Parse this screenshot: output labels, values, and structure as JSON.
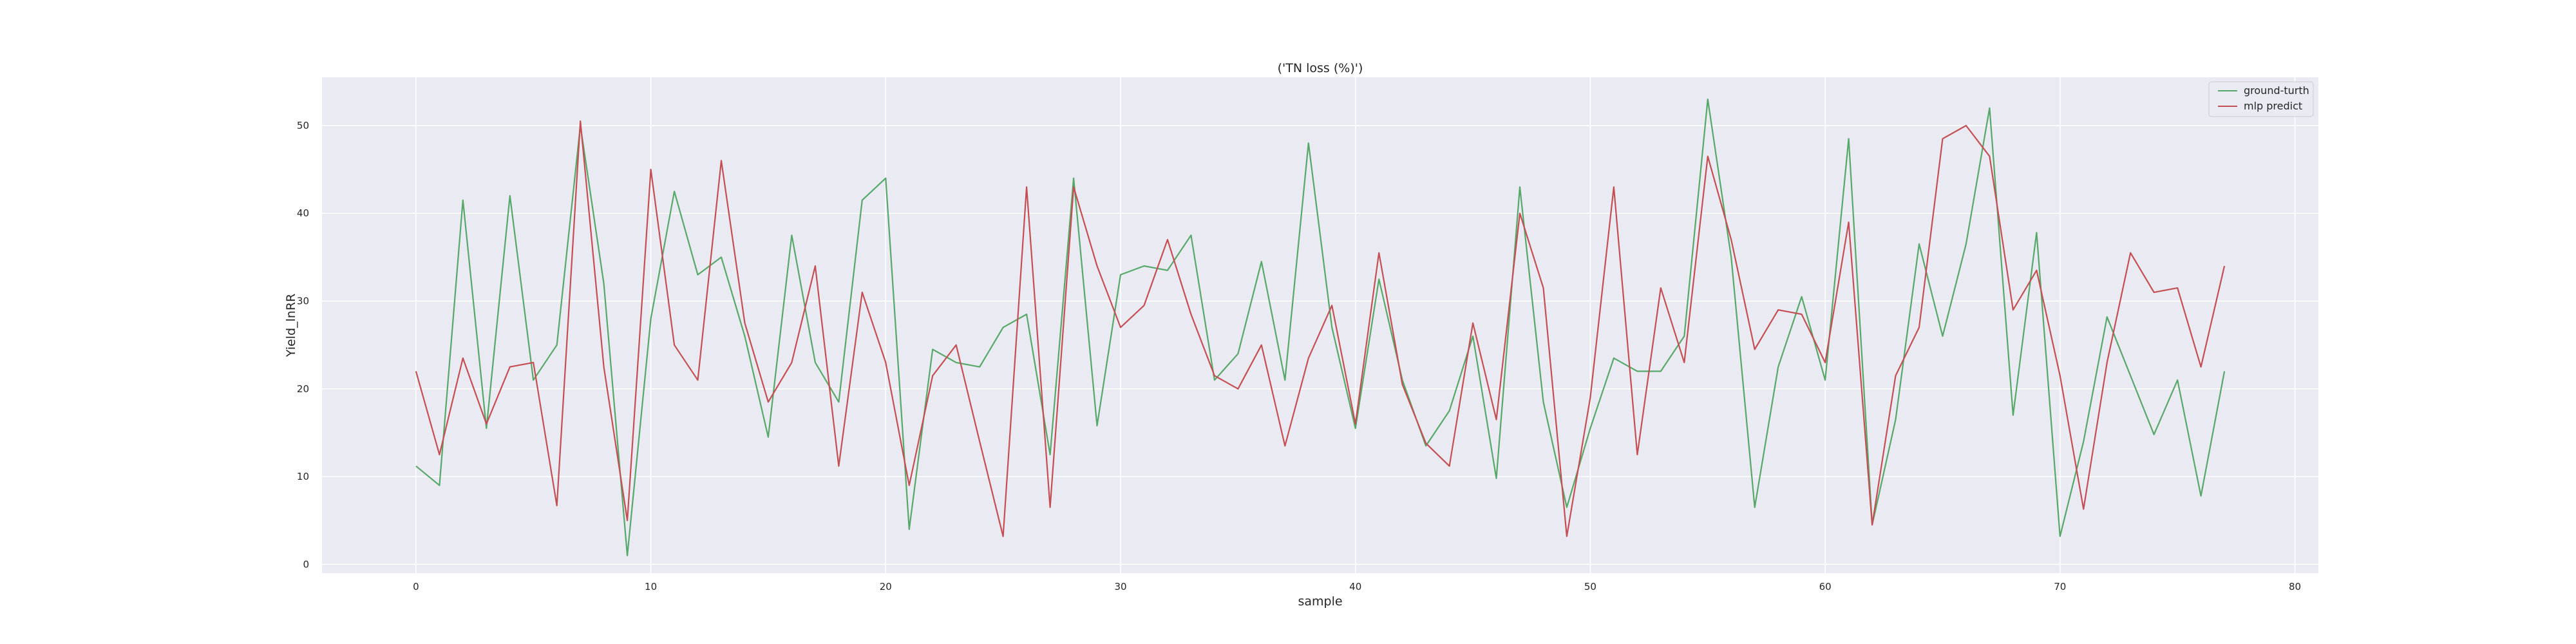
{
  "chart_data": {
    "type": "line",
    "title": "('TN loss (%)')",
    "xlabel": "sample",
    "ylabel": "Yield_lnRR",
    "xlim": [
      -4,
      81
    ],
    "ylim": [
      -1,
      55.5
    ],
    "xticks": [
      0,
      10,
      20,
      30,
      40,
      50,
      60,
      70,
      80
    ],
    "yticks": [
      0,
      10,
      20,
      30,
      40,
      50
    ],
    "grid": true,
    "legend_position": "top-right",
    "series": [
      {
        "name": "ground-turth",
        "color": "#55a868",
        "values": [
          11.2,
          9.0,
          41.5,
          15.5,
          42.0,
          21.0,
          25.0,
          50.0,
          32.0,
          1.0,
          28.0,
          42.5,
          33.0,
          35.0,
          26.0,
          14.5,
          37.5,
          23.0,
          18.5,
          41.5,
          44.0,
          4.0,
          24.5,
          23.0,
          22.5,
          27.0,
          28.5,
          12.5,
          44.0,
          15.8,
          33.0,
          34.0,
          33.5,
          37.5,
          21.0,
          24.0,
          34.5,
          21.0,
          48.0,
          27.0,
          15.5,
          32.5,
          21.0,
          13.5,
          17.5,
          26.0,
          9.8,
          43.0,
          18.5,
          6.5,
          15.5,
          23.5,
          22.0,
          22.0,
          26.0,
          53.0,
          35.0,
          6.5,
          22.5,
          30.5,
          21.0,
          48.5,
          4.5,
          16.5,
          36.5,
          26.0,
          36.5,
          52.0,
          17.0,
          37.8,
          3.2,
          14.0,
          28.2,
          21.5,
          14.8,
          21.0,
          7.8,
          22.0
        ]
      },
      {
        "name": "mlp predict",
        "color": "#c44e52",
        "values": [
          22.0,
          12.5,
          23.5,
          16.0,
          22.5,
          23.0,
          6.7,
          50.5,
          22.5,
          5.0,
          45.0,
          25.0,
          21.0,
          46.0,
          27.5,
          18.5,
          23.0,
          34.0,
          11.2,
          31.0,
          23.0,
          9.0,
          21.5,
          25.0,
          14.0,
          3.2,
          43.0,
          6.5,
          43.0,
          34.0,
          27.0,
          29.5,
          37.0,
          28.5,
          21.5,
          20.0,
          25.0,
          13.5,
          23.5,
          29.5,
          16.0,
          35.5,
          20.5,
          13.8,
          11.2,
          27.5,
          16.5,
          40.0,
          31.5,
          3.2,
          19.0,
          43.0,
          12.5,
          31.5,
          23.0,
          46.5,
          37.0,
          24.5,
          29.0,
          28.5,
          23.0,
          39.0,
          4.5,
          21.5,
          27.0,
          48.5,
          50.0,
          46.5,
          29.0,
          33.5,
          21.5,
          6.3,
          23.0,
          35.5,
          31.0,
          31.5,
          22.5,
          34.0
        ]
      }
    ]
  }
}
